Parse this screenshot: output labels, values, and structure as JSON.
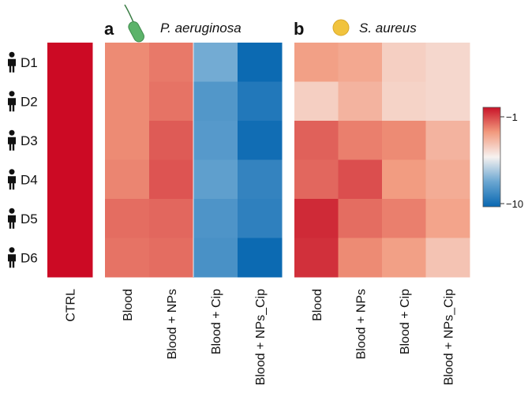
{
  "chart_data": [
    {
      "type": "heatmap",
      "panel": "",
      "species": "",
      "donors": [
        "D1",
        "D2",
        "D3",
        "D4",
        "D5",
        "D6"
      ],
      "conditions": [
        "CTRL"
      ],
      "values": [
        [
          -1
        ],
        [
          -1
        ],
        [
          -1
        ],
        [
          -1
        ],
        [
          -1
        ],
        [
          -1
        ]
      ]
    },
    {
      "type": "heatmap",
      "panel": "a",
      "species": "P. aeruginosa",
      "donors": [
        "D1",
        "D2",
        "D3",
        "D4",
        "D5",
        "D6"
      ],
      "conditions": [
        "Blood",
        "Blood + NPs",
        "Blood + Cip",
        "Blood + NPs_Cip"
      ],
      "values": [
        [
          -3.0,
          -2.7,
          -7.6,
          -9.9
        ],
        [
          -3.0,
          -2.6,
          -8.3,
          -9.4
        ],
        [
          -3.0,
          -2.2,
          -8.2,
          -9.8
        ],
        [
          -2.9,
          -2.1,
          -8.0,
          -9.0
        ],
        [
          -2.5,
          -2.4,
          -8.4,
          -9.1
        ],
        [
          -2.6,
          -2.5,
          -8.5,
          -9.9
        ]
      ]
    },
    {
      "type": "heatmap",
      "panel": "b",
      "species": "S. aureus",
      "donors": [
        "D1",
        "D2",
        "D3",
        "D4",
        "D5",
        "D6"
      ],
      "conditions": [
        "Blood",
        "Blood + NPs",
        "Blood + Cip",
        "Blood + NPs_Cip"
      ],
      "values": [
        [
          -3.4,
          -3.6,
          -4.6,
          -4.8
        ],
        [
          -4.6,
          -3.9,
          -4.7,
          -4.8
        ],
        [
          -2.3,
          -2.8,
          -3.0,
          -3.9
        ],
        [
          -2.4,
          -2.0,
          -3.3,
          -3.7
        ],
        [
          -1.4,
          -2.5,
          -2.8,
          -3.5
        ],
        [
          -1.5,
          -3.0,
          -3.4,
          -4.3
        ]
      ]
    }
  ],
  "colorbar": {
    "min_label": "−10",
    "max_label": "−1",
    "min": -10,
    "max": -1,
    "colors": [
      "#0867b1",
      "#6aa6d1",
      "#f7f2f0",
      "#f29a7e",
      "#c81228"
    ]
  },
  "icons": {
    "donor": "person-icon",
    "pa": "rod-bacterium-icon",
    "sa": "coccus-bacterium-icon"
  },
  "colors": {
    "ctrl": "#cc0a24",
    "icon_green": "#59b46a",
    "icon_yellow": "#f1c33d"
  }
}
